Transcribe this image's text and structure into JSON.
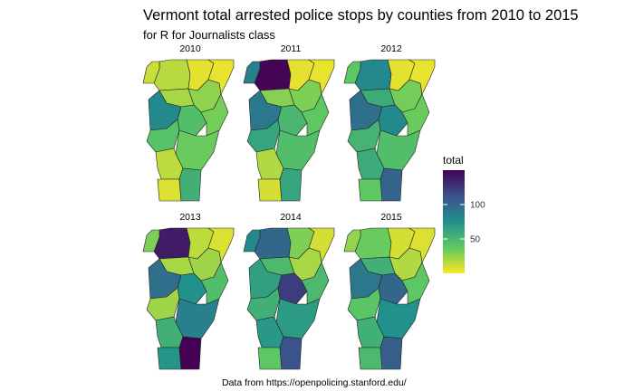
{
  "chart_data": {
    "type": "choropleth",
    "title": "Vermont total arrested police stops by counties from 2010 to 2015",
    "subtitle": "for R for Journalists class",
    "caption": "Data from https://openpolicing.stanford.edu/",
    "region": "Vermont",
    "colorscale": "viridis (reversed: yellow = low, purple = high)",
    "legend": {
      "title": "total",
      "placement": "right",
      "min": 0,
      "max": 150,
      "ticks": [
        {
          "value": 100,
          "label": "100"
        },
        {
          "value": 50,
          "label": "50"
        }
      ]
    },
    "panels": [
      {
        "label": "2010",
        "values": {
          "Franklin": 16,
          "Grand Isle": 12,
          "Orleans": 6,
          "Essex": 5,
          "Lamoille": 20,
          "Caledonia": 26,
          "Chittenden": 80,
          "Washington": 45,
          "Addison": 42,
          "Orange": 32,
          "Windsor": 35,
          "Rutland": 15,
          "Bennington": 8,
          "Windham": 55
        }
      },
      {
        "label": "2011",
        "values": {
          "Franklin": 148,
          "Grand Isle": 85,
          "Orleans": 6,
          "Essex": 5,
          "Lamoille": 28,
          "Caledonia": 30,
          "Chittenden": 90,
          "Washington": 50,
          "Addison": 62,
          "Orange": 38,
          "Windsor": 45,
          "Rutland": 18,
          "Bennington": 10,
          "Windham": 62
        }
      },
      {
        "label": "2012",
        "values": {
          "Franklin": 80,
          "Grand Isle": 38,
          "Orleans": 6,
          "Essex": 5,
          "Lamoille": 58,
          "Caledonia": 32,
          "Chittenden": 95,
          "Washington": 80,
          "Addison": 52,
          "Orange": 35,
          "Windsor": 45,
          "Rutland": 58,
          "Bennington": 38,
          "Windham": 102
        }
      },
      {
        "label": "2013",
        "values": {
          "Franklin": 138,
          "Grand Isle": 30,
          "Orleans": 15,
          "Essex": 8,
          "Lamoille": 20,
          "Caledonia": 22,
          "Chittenden": 95,
          "Washington": 75,
          "Addison": 22,
          "Orange": 45,
          "Windsor": 85,
          "Rutland": 55,
          "Bennington": 72,
          "Windham": 150
        }
      },
      {
        "label": "2014",
        "values": {
          "Franklin": 100,
          "Grand Isle": 80,
          "Orleans": 30,
          "Essex": 10,
          "Lamoille": 48,
          "Caledonia": 20,
          "Chittenden": 65,
          "Washington": 122,
          "Addison": 55,
          "Orange": 48,
          "Windsor": 68,
          "Rutland": 70,
          "Bennington": 38,
          "Windham": 112
        }
      },
      {
        "label": "2015",
        "values": {
          "Franklin": 35,
          "Grand Isle": 25,
          "Orleans": 10,
          "Essex": 8,
          "Lamoille": 55,
          "Caledonia": 18,
          "Chittenden": 90,
          "Washington": 100,
          "Addison": 40,
          "Orange": 38,
          "Windsor": 75,
          "Rutland": 55,
          "Bennington": 48,
          "Windham": 105
        }
      }
    ]
  }
}
